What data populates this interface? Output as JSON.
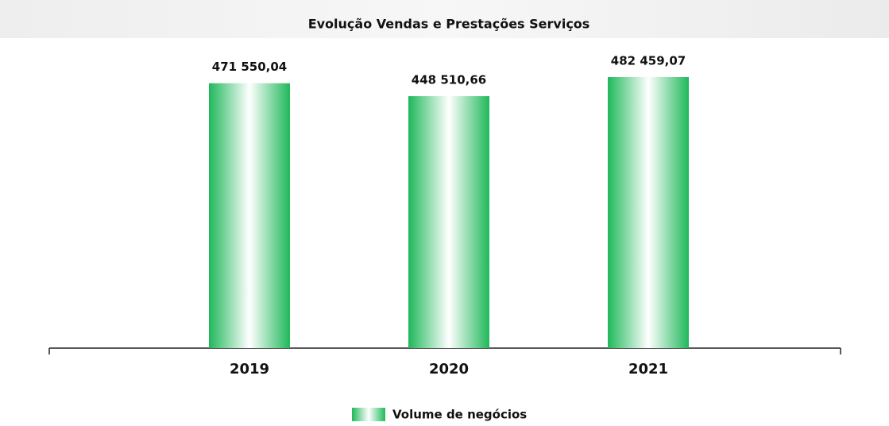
{
  "chart_data": {
    "type": "bar",
    "title": "Evolução Vendas e Prestações Serviços",
    "categories": [
      "2019",
      "2020",
      "2021"
    ],
    "series": [
      {
        "name": "Volume de negócios",
        "color": "#1fb85a",
        "values": [
          471550.04,
          448510.66,
          482459.07
        ],
        "value_labels": [
          "471 550,04",
          "448 510,66",
          "482 459,07"
        ]
      }
    ]
  }
}
